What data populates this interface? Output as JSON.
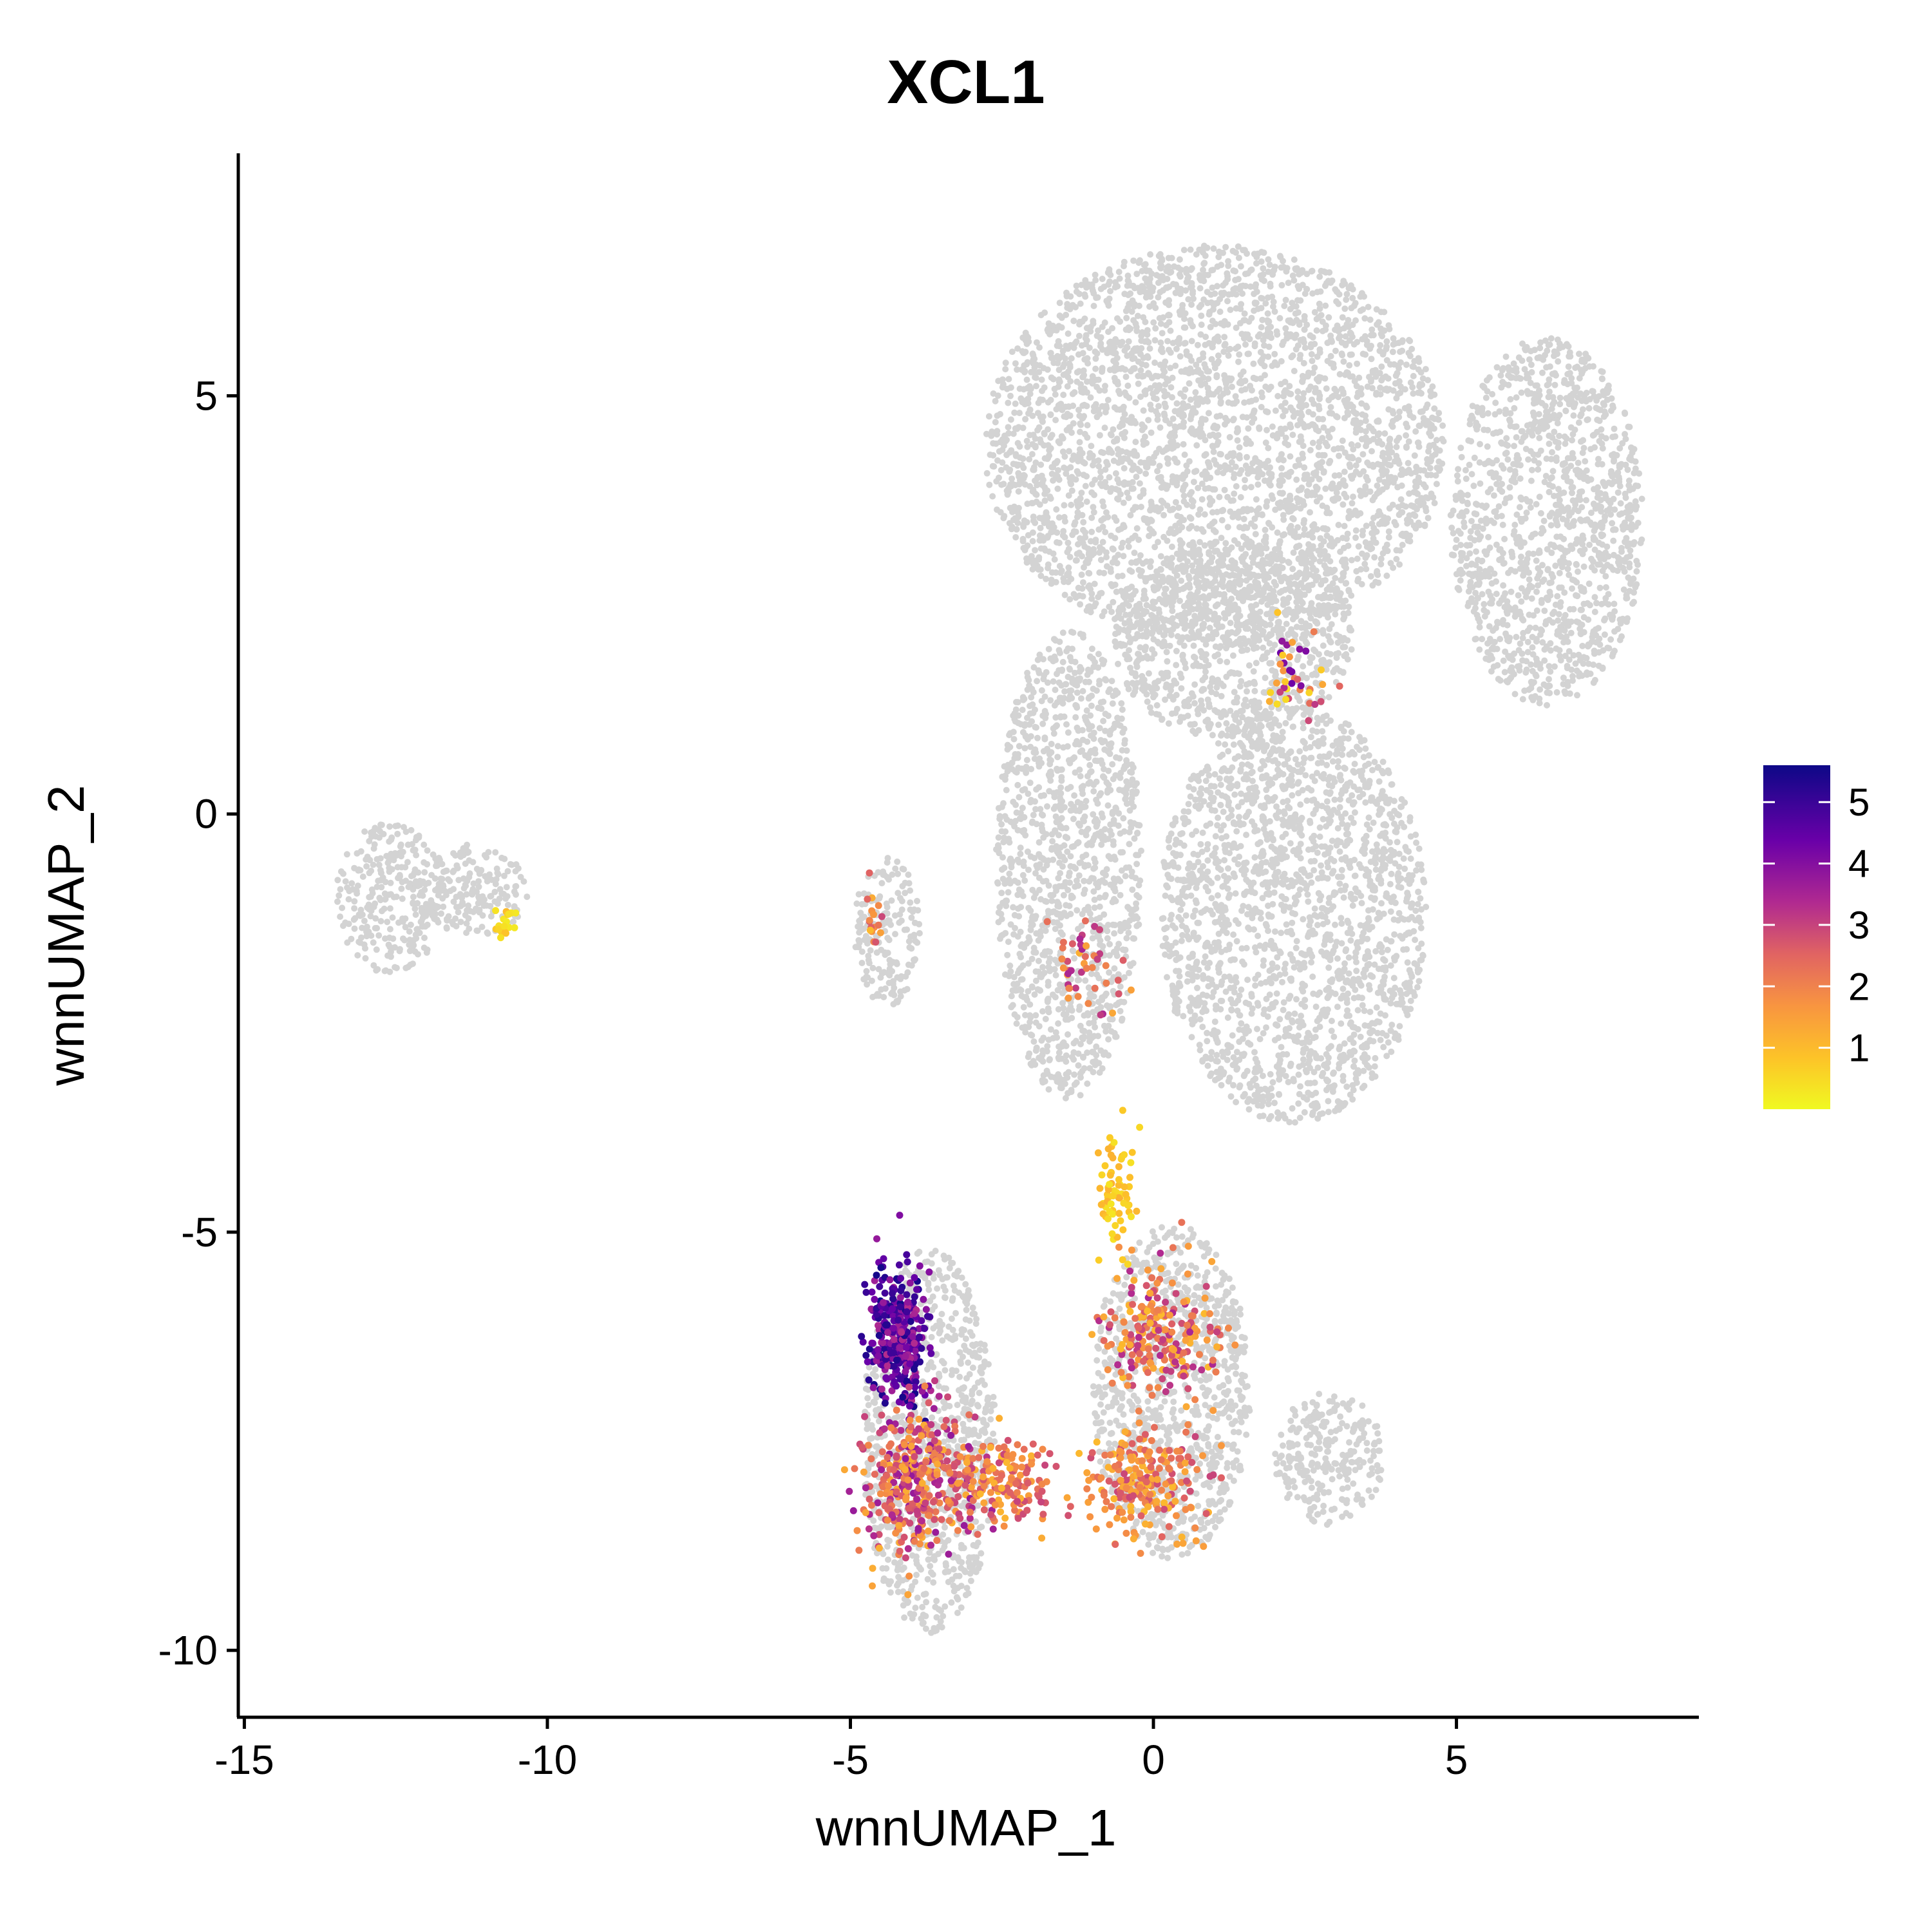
{
  "chart_data": {
    "type": "scatter",
    "title": "XCL1",
    "xlabel": "wnnUMAP_1",
    "ylabel": "wnnUMAP_2",
    "xlim": [
      -15.1,
      9.0
    ],
    "ylim": [
      -10.8,
      7.9
    ],
    "x_ticks": [
      -15,
      -10,
      -5,
      0,
      5
    ],
    "y_ticks": [
      -10,
      -5,
      0,
      5
    ],
    "background_color": "#d3d3d3",
    "colorscale": "plasma (reversed)",
    "legend": {
      "placement": "right",
      "range": [
        0,
        5.6
      ],
      "ticks": [
        1,
        2,
        3,
        4,
        5
      ]
    },
    "background_clusters": [
      {
        "cx": 1.0,
        "cy": 4.4,
        "rx": 3.8,
        "ry": 2.4
      },
      {
        "cx": 6.5,
        "cy": 3.5,
        "rx": 1.6,
        "ry": 2.2
      },
      {
        "cx": 2.3,
        "cy": -1.2,
        "rx": 2.2,
        "ry": 2.5
      },
      {
        "cx": -1.4,
        "cy": -0.6,
        "rx": 1.2,
        "ry": 2.8
      },
      {
        "cx": -4.4,
        "cy": -1.4,
        "rx": 0.55,
        "ry": 0.9
      },
      {
        "cx": -12.6,
        "cy": -1.0,
        "rx": 0.9,
        "ry": 0.9
      },
      {
        "cx": -11.2,
        "cy": -0.9,
        "rx": 0.9,
        "ry": 0.55
      },
      {
        "cx": -3.7,
        "cy": -7.5,
        "rx": 1.1,
        "ry": 2.3
      },
      {
        "cx": 0.3,
        "cy": -6.9,
        "rx": 1.3,
        "ry": 2.0
      },
      {
        "cx": 2.9,
        "cy": -7.7,
        "rx": 0.9,
        "ry": 0.8
      },
      {
        "cx": 1.3,
        "cy": 2.1,
        "rx": 2.0,
        "ry": 1.2
      }
    ],
    "expression_clusters": [
      {
        "cx": -4.2,
        "cy": -6.3,
        "rx": 0.5,
        "ry": 0.9,
        "level_min": 3.3,
        "level_max": 5.6,
        "count": 320
      },
      {
        "cx": -3.9,
        "cy": -8.0,
        "rx": 0.9,
        "ry": 0.9,
        "level_min": 1.2,
        "level_max": 3.8,
        "count": 380
      },
      {
        "cx": -2.4,
        "cy": -8.0,
        "rx": 0.7,
        "ry": 0.5,
        "level_min": 1.0,
        "level_max": 3.0,
        "count": 140
      },
      {
        "cx": 0.1,
        "cy": -6.2,
        "rx": 0.9,
        "ry": 0.8,
        "level_min": 1.0,
        "level_max": 3.5,
        "count": 230
      },
      {
        "cx": -0.2,
        "cy": -8.0,
        "rx": 1.0,
        "ry": 0.6,
        "level_min": 1.0,
        "level_max": 3.0,
        "count": 230
      },
      {
        "cx": -0.6,
        "cy": -4.6,
        "rx": 0.3,
        "ry": 0.8,
        "level_min": 0.3,
        "level_max": 1.2,
        "count": 70
      },
      {
        "cx": 2.3,
        "cy": 1.7,
        "rx": 0.5,
        "ry": 0.5,
        "level_min": 0.3,
        "level_max": 4.5,
        "count": 40
      },
      {
        "cx": -10.7,
        "cy": -1.3,
        "rx": 0.2,
        "ry": 0.2,
        "level_min": 0.2,
        "level_max": 1.0,
        "count": 18
      },
      {
        "cx": -1.2,
        "cy": -1.8,
        "rx": 0.6,
        "ry": 0.6,
        "level_min": 1.0,
        "level_max": 3.5,
        "count": 45
      },
      {
        "cx": -4.6,
        "cy": -1.3,
        "rx": 0.15,
        "ry": 0.4,
        "level_min": 1.0,
        "level_max": 3.0,
        "count": 18
      }
    ]
  }
}
